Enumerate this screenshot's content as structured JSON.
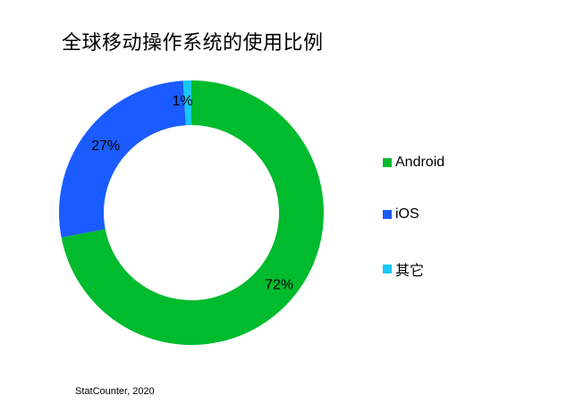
{
  "chart_data": {
    "type": "pie",
    "title": "全球移动操作系统的使用比例",
    "categories": [
      "Android",
      "iOS",
      "其它"
    ],
    "values": [
      72,
      27,
      1
    ],
    "labels": [
      "72%",
      "27%",
      "1%"
    ],
    "colors": [
      "#00bb2d",
      "#1a5cff",
      "#17c7f5"
    ],
    "donut": true,
    "legend_position": "right"
  },
  "source": "StatCounter, 2020"
}
